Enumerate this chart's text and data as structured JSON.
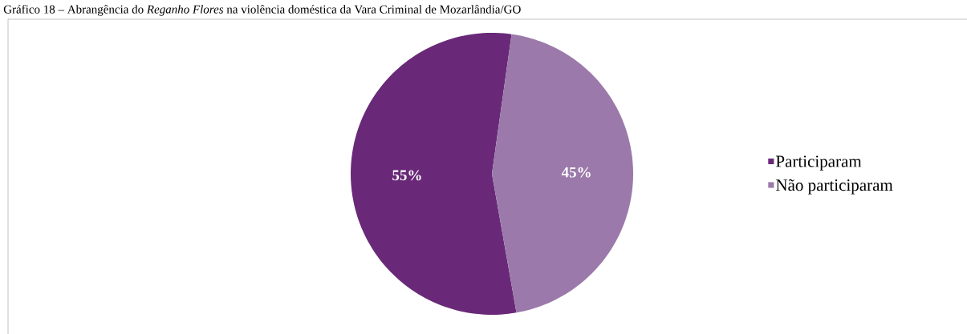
{
  "chart_data": {
    "type": "pie",
    "title": "Gráfico 18 – Abrangência do *Reganho Flores* na violência doméstica da Vara Criminal de Mozarlândia/GO",
    "categories": [
      "Participaram",
      "Não participaram"
    ],
    "values": [
      55,
      45
    ],
    "colors": [
      "#692978",
      "#9b79aa"
    ],
    "value_labels": [
      "55%",
      "45%"
    ],
    "legend": "right"
  }
}
